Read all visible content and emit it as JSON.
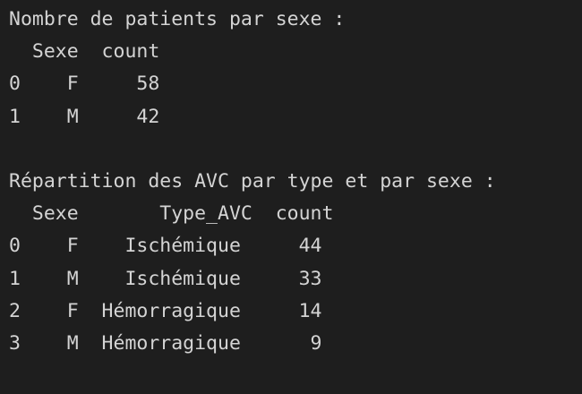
{
  "output": {
    "sex_counts": {
      "title": "Nombre de patients par sexe :",
      "header": "  Sexe  count",
      "rows": [
        "0    F     58",
        "1    M     42"
      ]
    },
    "stroke_distribution": {
      "title": "Répartition des AVC par type et par sexe :",
      "header": "  Sexe       Type_AVC  count",
      "rows": [
        "0    F    Ischémique     44",
        "1    M    Ischémique     33",
        "2    F  Hémorragique     14",
        "3    M  Hémorragique      9"
      ]
    }
  },
  "colors": {
    "background": "#1e1e1e",
    "text": "#d4d4d4"
  }
}
